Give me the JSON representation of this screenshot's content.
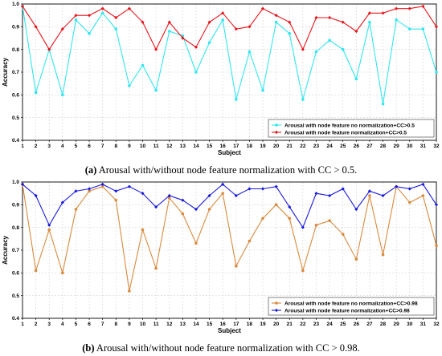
{
  "chart_data": [
    {
      "id": "a",
      "type": "line",
      "xlabel": "Subject",
      "ylabel": "Accuracy",
      "xlim": [
        1,
        32
      ],
      "ylim": [
        0.4,
        1.0
      ],
      "x": [
        1,
        2,
        3,
        4,
        5,
        6,
        7,
        8,
        9,
        10,
        11,
        12,
        13,
        14,
        15,
        16,
        17,
        18,
        19,
        20,
        21,
        22,
        23,
        24,
        25,
        26,
        27,
        28,
        29,
        30,
        31,
        32
      ],
      "xticks": [
        "1",
        "2",
        "3",
        "4",
        "5",
        "6",
        "7",
        "8",
        "9",
        "10",
        "11",
        "12",
        "13",
        "14",
        "15",
        "16",
        "17",
        "18",
        "19",
        "20",
        "21",
        "22",
        "23",
        "24",
        "25",
        "26",
        "27",
        "28",
        "29",
        "30",
        "31",
        "32"
      ],
      "yticks": [
        "0.4",
        "0.5",
        "0.6",
        "0.7",
        "0.8",
        "0.9",
        "1.0"
      ],
      "grid": true,
      "legend_position": "bottom-right",
      "series": [
        {
          "name": "Arousal with node feature no normalization+CC>0.5",
          "color": "#33e6f0",
          "marker": "circle",
          "values": [
            0.99,
            0.61,
            0.8,
            0.6,
            0.93,
            0.87,
            0.96,
            0.89,
            0.64,
            0.73,
            0.62,
            0.88,
            0.86,
            0.7,
            0.83,
            0.93,
            0.58,
            0.79,
            0.62,
            0.92,
            0.87,
            0.58,
            0.79,
            0.84,
            0.8,
            0.67,
            0.92,
            0.56,
            0.93,
            0.89,
            0.89,
            0.7
          ]
        },
        {
          "name": "Arousal with node feature normalization+CC>0.5",
          "color": "#e8141a",
          "marker": "diamond",
          "values": [
            0.99,
            0.9,
            0.8,
            0.89,
            0.95,
            0.95,
            0.98,
            0.94,
            0.98,
            0.92,
            0.8,
            0.92,
            0.85,
            0.81,
            0.92,
            0.96,
            0.89,
            0.9,
            0.98,
            0.95,
            0.92,
            0.8,
            0.94,
            0.94,
            0.92,
            0.88,
            0.96,
            0.96,
            0.98,
            0.98,
            0.99,
            0.9
          ]
        }
      ]
    },
    {
      "id": "b",
      "type": "line",
      "xlabel": "Subject",
      "ylabel": "Accuracy",
      "xlim": [
        1,
        32
      ],
      "ylim": [
        0.4,
        1.0
      ],
      "x": [
        1,
        2,
        3,
        4,
        5,
        6,
        7,
        8,
        9,
        10,
        11,
        12,
        13,
        14,
        15,
        16,
        17,
        18,
        19,
        20,
        21,
        22,
        23,
        24,
        25,
        26,
        27,
        28,
        29,
        30,
        31,
        32
      ],
      "xticks": [
        "1",
        "2",
        "3",
        "4",
        "5",
        "6",
        "7",
        "8",
        "9",
        "10",
        "11",
        "12",
        "13",
        "14",
        "15",
        "16",
        "17",
        "18",
        "19",
        "20",
        "21",
        "22",
        "23",
        "24",
        "25",
        "26",
        "27",
        "28",
        "29",
        "30",
        "31",
        "32"
      ],
      "yticks": [
        "0.4",
        "0.5",
        "0.6",
        "0.7",
        "0.8",
        "0.9",
        "1.0"
      ],
      "grid": true,
      "legend_position": "bottom-right",
      "series": [
        {
          "name": "Arousal with node feature no normalization+CC>0.98",
          "color": "#d98a3d",
          "marker": "circle",
          "values": [
            0.99,
            0.61,
            0.79,
            0.6,
            0.88,
            0.96,
            0.98,
            0.92,
            0.52,
            0.79,
            0.62,
            0.93,
            0.86,
            0.73,
            0.88,
            0.95,
            0.63,
            0.74,
            0.84,
            0.9,
            0.84,
            0.61,
            0.81,
            0.83,
            0.77,
            0.66,
            0.94,
            0.68,
            0.98,
            0.91,
            0.94,
            0.72
          ]
        },
        {
          "name": "Arousal with node feature normalization+CC>0.98",
          "color": "#1a1adf",
          "marker": "diamond",
          "values": [
            0.99,
            0.94,
            0.81,
            0.91,
            0.96,
            0.97,
            0.99,
            0.96,
            0.98,
            0.95,
            0.89,
            0.94,
            0.92,
            0.88,
            0.94,
            0.99,
            0.94,
            0.97,
            0.97,
            0.98,
            0.89,
            0.8,
            0.95,
            0.94,
            0.97,
            0.88,
            0.96,
            0.94,
            0.98,
            0.97,
            0.99,
            0.9
          ]
        }
      ]
    }
  ],
  "captions": {
    "a": {
      "label": "(a)",
      "text": " Arousal with/without node feature normalization with CC > 0.5."
    },
    "b": {
      "label": "(b)",
      "text": " Arousal with/without node feature normalization with CC > 0.98."
    }
  }
}
